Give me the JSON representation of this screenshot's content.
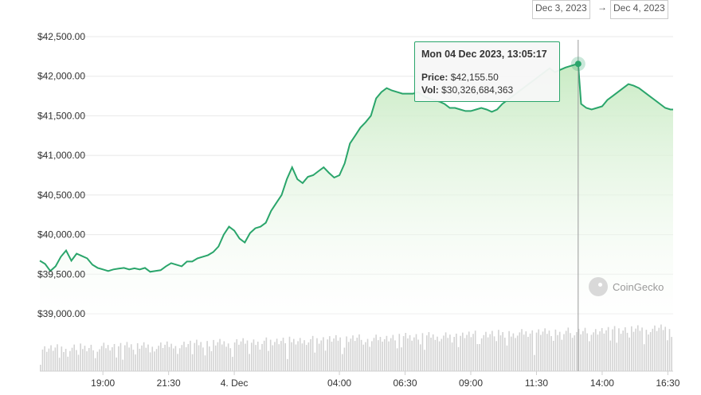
{
  "date_range": {
    "from": "Dec 3, 2023",
    "arrow": "→",
    "to": "Dec 4, 2023"
  },
  "tooltip": {
    "date": "Mon 04 Dec 2023, 13:05:17",
    "price_label": "Price:",
    "price_value": "$42,155.50",
    "vol_label": "Vol:",
    "vol_value": "$30,326,684,363"
  },
  "watermark": "CoinGecko",
  "colors": {
    "line": "#2aa56b",
    "fill_top": "#c9ebc4",
    "fill_bottom": "#ffffff",
    "volume": "#d3d3d3",
    "grid": "#e8e8e8"
  },
  "chart_data": {
    "type": "area",
    "y_axis": {
      "ticks": [
        "$42,500.00",
        "$42,000.00",
        "$41,500.00",
        "$41,000.00",
        "$40,500.00",
        "$40,000.00",
        "$39,500.00",
        "$39,000.00"
      ],
      "tick_values": [
        42500,
        42000,
        41500,
        41000,
        40500,
        40000,
        39500,
        39000
      ],
      "ylim": [
        38940,
        42560
      ]
    },
    "x_axis": {
      "ticks": [
        "19:00",
        "21:30",
        "4. Dec",
        "04:00",
        "06:30",
        "09:00",
        "11:30",
        "14:00",
        "16:30"
      ],
      "tick_hours": [
        19,
        21.5,
        24,
        28,
        30.5,
        33,
        35.5,
        38,
        40.5
      ],
      "xlim": [
        16.6,
        40.7
      ]
    },
    "grid": true,
    "highlight": {
      "hour": 37.087,
      "price": 42155.5
    },
    "series": [
      {
        "x": [
          16.6,
          16.8,
          17.0,
          17.2,
          17.4,
          17.6,
          17.8,
          18.0,
          18.2,
          18.4,
          18.6,
          18.8,
          19.0,
          19.2,
          19.4,
          19.6,
          19.8,
          20.0,
          20.2,
          20.4,
          20.6,
          20.8,
          21.0,
          21.2,
          21.4,
          21.6,
          21.8,
          22.0,
          22.2,
          22.4,
          22.6,
          22.8,
          23.0,
          23.2,
          23.4,
          23.6,
          23.8,
          24.0,
          24.2,
          24.4,
          24.6,
          24.8,
          25.0,
          25.2,
          25.4,
          25.6,
          25.8,
          26.0,
          26.2,
          26.4,
          26.6,
          26.8,
          27.0,
          27.2,
          27.4,
          27.6,
          27.8,
          28.0,
          28.2,
          28.4,
          28.6,
          28.8,
          29.0,
          29.2,
          29.4,
          29.6,
          29.8,
          30.0,
          30.2,
          30.4,
          30.6,
          30.8,
          31.0,
          31.2,
          31.4,
          31.6,
          31.8,
          32.0,
          32.2,
          32.4,
          32.6,
          32.8,
          33.0,
          33.2,
          33.4,
          33.6,
          33.8,
          34.0,
          34.2,
          34.4,
          34.6,
          34.8,
          35.0,
          35.2,
          35.4,
          35.6,
          35.8,
          36.0,
          36.2,
          36.4,
          36.6,
          36.8,
          37.0,
          37.087,
          37.2,
          37.4,
          37.6,
          37.8,
          38.0,
          38.2,
          38.4,
          38.6,
          38.8,
          39.0,
          39.2,
          39.4,
          39.6,
          39.8,
          40.0,
          40.2,
          40.4,
          40.6,
          40.7
        ],
        "y": [
          39670,
          39630,
          39540,
          39600,
          39720,
          39800,
          39670,
          39760,
          39730,
          39700,
          39620,
          39580,
          39560,
          39540,
          39560,
          39570,
          39580,
          39560,
          39575,
          39560,
          39580,
          39530,
          39540,
          39550,
          39600,
          39640,
          39620,
          39600,
          39660,
          39660,
          39700,
          39720,
          39740,
          39780,
          39850,
          40000,
          40100,
          40050,
          39950,
          39900,
          40020,
          40080,
          40100,
          40150,
          40300,
          40400,
          40500,
          40700,
          40850,
          40700,
          40650,
          40730,
          40750,
          40800,
          40850,
          40780,
          40720,
          40750,
          40900,
          41150,
          41250,
          41350,
          41420,
          41500,
          41720,
          41800,
          41850,
          41820,
          41800,
          41780,
          41780,
          41780,
          41800,
          41750,
          41720,
          41700,
          41680,
          41650,
          41600,
          41600,
          41580,
          41560,
          41560,
          41580,
          41600,
          41580,
          41550,
          41580,
          41650,
          41700,
          41750,
          41800,
          41850,
          41900,
          41950,
          42000,
          42050,
          42100,
          42050,
          42080,
          42110,
          42130,
          42150,
          42155.5,
          41650,
          41600,
          41580,
          41600,
          41620,
          41700,
          41750,
          41800,
          41850,
          41900,
          41880,
          41850,
          41800,
          41750,
          41700,
          41650,
          41600,
          41580,
          41580
        ]
      }
    ]
  }
}
